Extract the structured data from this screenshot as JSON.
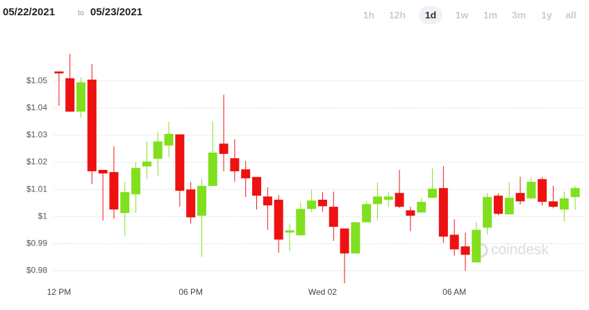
{
  "header": {
    "from": "05/22/2021",
    "separator": "to",
    "to": "05/23/2021",
    "periods": [
      "1h",
      "12h",
      "1d",
      "1w",
      "1m",
      "3m",
      "1y",
      "all"
    ],
    "selected": "1d"
  },
  "watermark": "coindesk",
  "chart_data": {
    "type": "candlestick",
    "categories": [
      "12 PM",
      null,
      null,
      null,
      null,
      null,
      null,
      null,
      null,
      null,
      null,
      null,
      "06 PM",
      null,
      null,
      null,
      null,
      null,
      null,
      null,
      null,
      null,
      null,
      null,
      "Wed 02",
      null,
      null,
      null,
      null,
      null,
      null,
      null,
      null,
      null,
      null,
      null,
      "06 AM",
      null,
      null,
      null,
      null,
      null,
      null,
      null,
      null,
      null,
      null,
      null
    ],
    "open": [
      1.0535,
      1.051,
      1.0387,
      1.0505,
      1.0172,
      1.0164,
      1.0013,
      1.0082,
      1.0185,
      1.0213,
      1.0262,
      1.0303,
      1.01,
      1.0003,
      1.0113,
      1.0269,
      1.0215,
      1.0174,
      1.0146,
      1.0074,
      1.0062,
      0.9941,
      0.9931,
      1.0028,
      1.0062,
      1.0036,
      0.9956,
      0.9864,
      0.9979,
      1.0046,
      1.0062,
      1.0087,
      1.0023,
      1.0015,
      1.0069,
      1.0105,
      0.9933,
      0.989,
      0.9831,
      0.9959,
      1.0077,
      1.0008,
      1.0087,
      1.0067,
      1.0138,
      1.0056,
      1.0026,
      1.0072
    ],
    "high": [
      1.0535,
      1.06,
      1.0513,
      1.0562,
      1.0172,
      1.0259,
      1.0128,
      1.02,
      1.0277,
      1.0313,
      1.0349,
      1.0303,
      1.0128,
      1.0138,
      1.0351,
      1.0449,
      1.0285,
      1.0205,
      1.0146,
      1.0108,
      1.0079,
      0.9974,
      1.0054,
      1.01,
      1.009,
      1.0092,
      0.9956,
      0.9979,
      1.0056,
      1.0126,
      1.0092,
      1.0172,
      1.0036,
      1.0069,
      1.0177,
      1.0185,
      0.999,
      0.9941,
      0.9979,
      1.0087,
      1.0085,
      1.0128,
      1.0146,
      1.0144,
      1.0146,
      1.0113,
      1.0092,
      1.0113
    ],
    "low": [
      1.0408,
      1.0387,
      1.0364,
      1.012,
      0.9985,
      0.9992,
      0.9928,
      1.0013,
      1.0138,
      1.0151,
      1.022,
      1.0036,
      0.9974,
      0.9851,
      1.0113,
      1.0167,
      1.0128,
      1.0072,
      1.0026,
      0.9951,
      0.9867,
      0.9872,
      0.9928,
      1.0015,
      1.0018,
      0.991,
      0.9754,
      0.9864,
      0.9979,
      0.9985,
      1.0036,
      1.0031,
      0.9946,
      1.0015,
      1.0069,
      0.9903,
      0.9856,
      0.98,
      0.9831,
      0.9933,
      1.0005,
      1.0008,
      1.0044,
      1.0064,
      1.0041,
      1.0031,
      0.9982,
      1.0026
    ],
    "close": [
      1.0528,
      1.0387,
      1.0495,
      1.0167,
      1.0159,
      1.0026,
      1.009,
      1.0179,
      1.0203,
      1.0277,
      1.0305,
      1.0095,
      0.9997,
      1.0113,
      1.0236,
      1.0231,
      1.0167,
      1.0141,
      1.0077,
      1.0041,
      0.9915,
      0.9949,
      1.0028,
      1.0059,
      1.0038,
      0.9962,
      0.9864,
      0.9979,
      1.0046,
      1.0074,
      1.0074,
      1.0036,
      1.0003,
      1.0054,
      1.0103,
      0.9926,
      0.9879,
      0.9859,
      0.9951,
      1.0072,
      1.001,
      1.0069,
      1.0056,
      1.0128,
      1.0054,
      1.0036,
      1.0067,
      1.0105
    ],
    "up_color": "#80e01e",
    "down_color": "#ee1111",
    "ylim": [
      0.975,
      1.064
    ],
    "yticks": [
      {
        "value": 1.05,
        "label": "$1.05"
      },
      {
        "value": 1.04,
        "label": "$1.04"
      },
      {
        "value": 1.03,
        "label": "$1.03"
      },
      {
        "value": 1.02,
        "label": "$1.02"
      },
      {
        "value": 1.01,
        "label": "$1.01"
      },
      {
        "value": 1,
        "label": "$1"
      },
      {
        "value": 0.99,
        "label": "$0.99"
      },
      {
        "value": 0.98,
        "label": "$0.98"
      }
    ],
    "grid": true
  }
}
